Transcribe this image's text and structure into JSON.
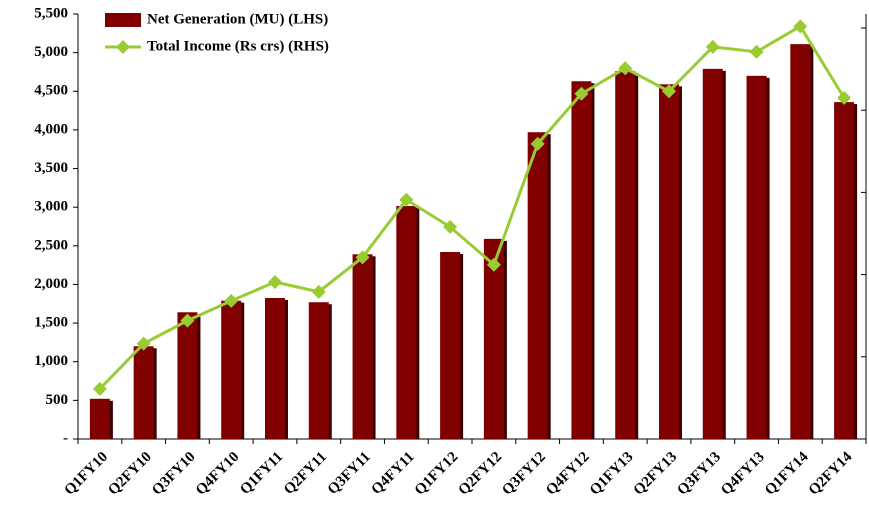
{
  "chart_data": {
    "type": "bar_line",
    "categories": [
      "Q1FY10",
      "Q2FY10",
      "Q3FY10",
      "Q4FY10",
      "Q1FY11",
      "Q2FY11",
      "Q3FY11",
      "Q4FY11",
      "Q1FY12",
      "Q2FY12",
      "Q3FY12",
      "Q4FY12",
      "Q1FY13",
      "Q2FY13",
      "Q3FY13",
      "Q4FY13",
      "Q1FY14",
      "Q2FY14"
    ],
    "series": [
      {
        "name": "Net Generation (MU) (LHS)",
        "type": "bar",
        "color": "#800000",
        "values": [
          520,
          1200,
          1640,
          1790,
          1825,
          1770,
          2390,
          3015,
          2420,
          2590,
          3970,
          4630,
          4760,
          4590,
          4790,
          4700,
          5110,
          4360
        ]
      },
      {
        "name": "Total Income (Rs crs) (RHS)",
        "type": "line",
        "axis": "y2",
        "color": "#99cc33",
        "values": [
          61,
          116,
          144,
          168,
          191,
          179,
          221,
          291,
          258,
          212,
          359,
          420,
          451,
          423,
          477,
          471,
          502,
          415
        ]
      }
    ],
    "ylim": [
      0,
      5500
    ],
    "yticks": [
      {
        "value": 0,
        "label": "-"
      },
      500,
      {
        "value": 1000,
        "label": "1,000"
      },
      {
        "value": 1500,
        "label": "1,500"
      },
      {
        "value": 2000,
        "label": "2,000"
      },
      {
        "value": 2500,
        "label": "2,500"
      },
      {
        "value": 3000,
        "label": "3,000"
      },
      {
        "value": 3500,
        "label": "3,500"
      },
      {
        "value": 4000,
        "label": "4,000"
      },
      {
        "value": 4500,
        "label": "4,500"
      },
      {
        "value": 5000,
        "label": "5,000"
      },
      {
        "value": 5500,
        "label": "5,500"
      }
    ],
    "y2lim": [
      0,
      517
    ],
    "y2ticks": [
      0,
      100,
      200,
      300,
      400,
      500
    ],
    "legend": "upper left"
  }
}
